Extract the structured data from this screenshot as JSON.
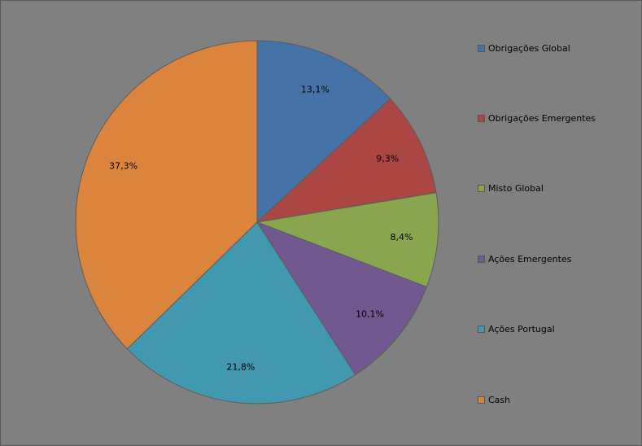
{
  "chart_data": {
    "type": "pie",
    "title": "",
    "start_angle_deg": 0,
    "direction": "clockwise",
    "legend_position": "right",
    "slices": [
      {
        "label": "Obrigações Global",
        "value": 13.1,
        "value_label": "13,1%",
        "color": "#4572A7"
      },
      {
        "label": "Obrigações Emergentes",
        "value": 9.3,
        "value_label": "9,3%",
        "color": "#AA4643"
      },
      {
        "label": "Misto Global",
        "value": 8.4,
        "value_label": "8,4%",
        "color": "#89A54E"
      },
      {
        "label": "Ações Emergentes",
        "value": 10.1,
        "value_label": "10,1%",
        "color": "#71588F"
      },
      {
        "label": "Ações Portugal",
        "value": 21.8,
        "value_label": "21,8%",
        "color": "#4198AF"
      },
      {
        "label": "Cash",
        "value": 37.3,
        "value_label": "37,3%",
        "color": "#DB843D"
      }
    ]
  }
}
